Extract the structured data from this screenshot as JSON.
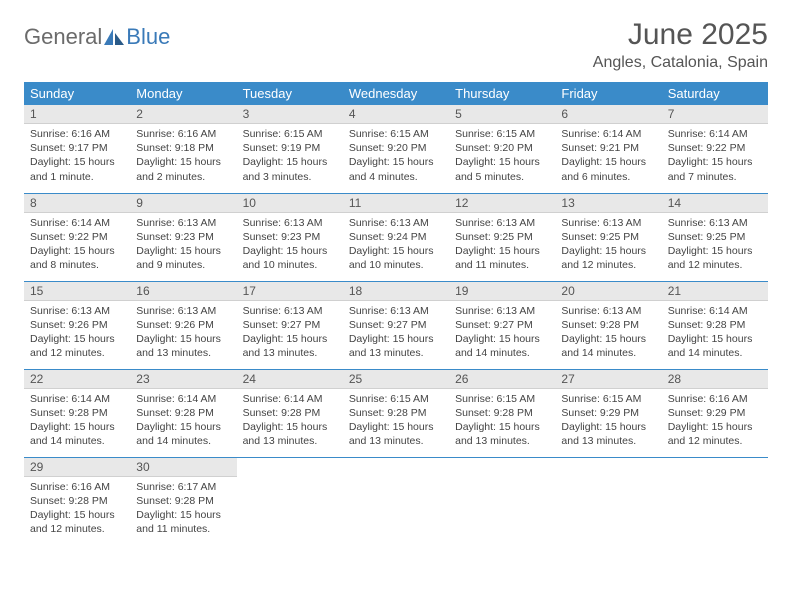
{
  "logo": {
    "text1": "General",
    "text2": "Blue"
  },
  "title": "June 2025",
  "location": "Angles, Catalonia, Spain",
  "colors": {
    "header_bg": "#3a8bc9",
    "header_text": "#ffffff",
    "daynum_bg": "#e8e8e8",
    "border": "#3a8bc9",
    "logo_gray": "#6b6b6b",
    "logo_blue": "#3a7ab8"
  },
  "weekdays": [
    "Sunday",
    "Monday",
    "Tuesday",
    "Wednesday",
    "Thursday",
    "Friday",
    "Saturday"
  ],
  "days": [
    {
      "n": "1",
      "sunrise": "6:16 AM",
      "sunset": "9:17 PM",
      "daylight": "15 hours and 1 minute."
    },
    {
      "n": "2",
      "sunrise": "6:16 AM",
      "sunset": "9:18 PM",
      "daylight": "15 hours and 2 minutes."
    },
    {
      "n": "3",
      "sunrise": "6:15 AM",
      "sunset": "9:19 PM",
      "daylight": "15 hours and 3 minutes."
    },
    {
      "n": "4",
      "sunrise": "6:15 AM",
      "sunset": "9:20 PM",
      "daylight": "15 hours and 4 minutes."
    },
    {
      "n": "5",
      "sunrise": "6:15 AM",
      "sunset": "9:20 PM",
      "daylight": "15 hours and 5 minutes."
    },
    {
      "n": "6",
      "sunrise": "6:14 AM",
      "sunset": "9:21 PM",
      "daylight": "15 hours and 6 minutes."
    },
    {
      "n": "7",
      "sunrise": "6:14 AM",
      "sunset": "9:22 PM",
      "daylight": "15 hours and 7 minutes."
    },
    {
      "n": "8",
      "sunrise": "6:14 AM",
      "sunset": "9:22 PM",
      "daylight": "15 hours and 8 minutes."
    },
    {
      "n": "9",
      "sunrise": "6:13 AM",
      "sunset": "9:23 PM",
      "daylight": "15 hours and 9 minutes."
    },
    {
      "n": "10",
      "sunrise": "6:13 AM",
      "sunset": "9:23 PM",
      "daylight": "15 hours and 10 minutes."
    },
    {
      "n": "11",
      "sunrise": "6:13 AM",
      "sunset": "9:24 PM",
      "daylight": "15 hours and 10 minutes."
    },
    {
      "n": "12",
      "sunrise": "6:13 AM",
      "sunset": "9:25 PM",
      "daylight": "15 hours and 11 minutes."
    },
    {
      "n": "13",
      "sunrise": "6:13 AM",
      "sunset": "9:25 PM",
      "daylight": "15 hours and 12 minutes."
    },
    {
      "n": "14",
      "sunrise": "6:13 AM",
      "sunset": "9:25 PM",
      "daylight": "15 hours and 12 minutes."
    },
    {
      "n": "15",
      "sunrise": "6:13 AM",
      "sunset": "9:26 PM",
      "daylight": "15 hours and 12 minutes."
    },
    {
      "n": "16",
      "sunrise": "6:13 AM",
      "sunset": "9:26 PM",
      "daylight": "15 hours and 13 minutes."
    },
    {
      "n": "17",
      "sunrise": "6:13 AM",
      "sunset": "9:27 PM",
      "daylight": "15 hours and 13 minutes."
    },
    {
      "n": "18",
      "sunrise": "6:13 AM",
      "sunset": "9:27 PM",
      "daylight": "15 hours and 13 minutes."
    },
    {
      "n": "19",
      "sunrise": "6:13 AM",
      "sunset": "9:27 PM",
      "daylight": "15 hours and 14 minutes."
    },
    {
      "n": "20",
      "sunrise": "6:13 AM",
      "sunset": "9:28 PM",
      "daylight": "15 hours and 14 minutes."
    },
    {
      "n": "21",
      "sunrise": "6:14 AM",
      "sunset": "9:28 PM",
      "daylight": "15 hours and 14 minutes."
    },
    {
      "n": "22",
      "sunrise": "6:14 AM",
      "sunset": "9:28 PM",
      "daylight": "15 hours and 14 minutes."
    },
    {
      "n": "23",
      "sunrise": "6:14 AM",
      "sunset": "9:28 PM",
      "daylight": "15 hours and 14 minutes."
    },
    {
      "n": "24",
      "sunrise": "6:14 AM",
      "sunset": "9:28 PM",
      "daylight": "15 hours and 13 minutes."
    },
    {
      "n": "25",
      "sunrise": "6:15 AM",
      "sunset": "9:28 PM",
      "daylight": "15 hours and 13 minutes."
    },
    {
      "n": "26",
      "sunrise": "6:15 AM",
      "sunset": "9:28 PM",
      "daylight": "15 hours and 13 minutes."
    },
    {
      "n": "27",
      "sunrise": "6:15 AM",
      "sunset": "9:29 PM",
      "daylight": "15 hours and 13 minutes."
    },
    {
      "n": "28",
      "sunrise": "6:16 AM",
      "sunset": "9:29 PM",
      "daylight": "15 hours and 12 minutes."
    },
    {
      "n": "29",
      "sunrise": "6:16 AM",
      "sunset": "9:28 PM",
      "daylight": "15 hours and 12 minutes."
    },
    {
      "n": "30",
      "sunrise": "6:17 AM",
      "sunset": "9:28 PM",
      "daylight": "15 hours and 11 minutes."
    }
  ],
  "labels": {
    "sunrise": "Sunrise:",
    "sunset": "Sunset:",
    "daylight": "Daylight:"
  }
}
